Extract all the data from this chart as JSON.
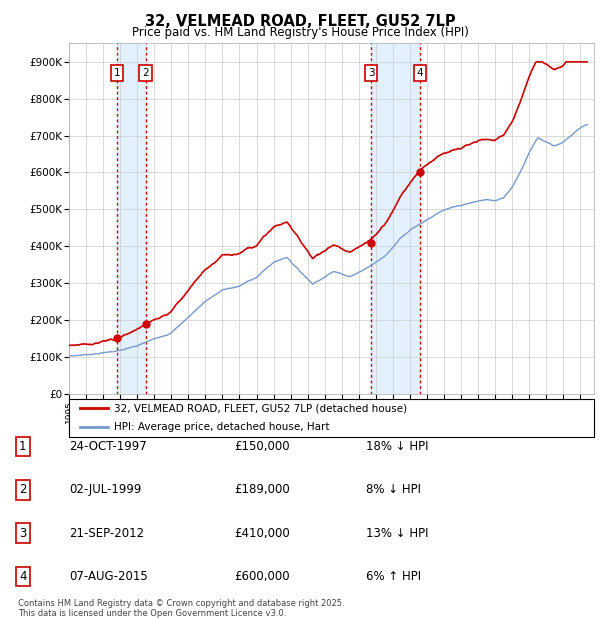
{
  "title": "32, VELMEAD ROAD, FLEET, GU52 7LP",
  "subtitle": "Price paid vs. HM Land Registry's House Price Index (HPI)",
  "ylim": [
    0,
    950000
  ],
  "yticks": [
    0,
    100000,
    200000,
    300000,
    400000,
    500000,
    600000,
    700000,
    800000,
    900000
  ],
  "ytick_labels": [
    "£0",
    "£100K",
    "£200K",
    "£300K",
    "£400K",
    "£500K",
    "£600K",
    "£700K",
    "£800K",
    "£900K"
  ],
  "xlim_start": 1995.0,
  "xlim_end": 2025.8,
  "hpi_color": "#7799cc",
  "price_color": "#cc0000",
  "transactions": [
    {
      "num": 1,
      "date": "24-OCT-1997",
      "year": 1997.81,
      "price": 150000,
      "pct": "18%",
      "dir": "↓"
    },
    {
      "num": 2,
      "date": "02-JUL-1999",
      "year": 1999.5,
      "price": 189000,
      "pct": "8%",
      "dir": "↓"
    },
    {
      "num": 3,
      "date": "21-SEP-2012",
      "year": 2012.72,
      "price": 410000,
      "pct": "13%",
      "dir": "↓"
    },
    {
      "num": 4,
      "date": "07-AUG-2015",
      "year": 2015.6,
      "price": 600000,
      "pct": "6%",
      "dir": "↑"
    }
  ],
  "legend_line1": "32, VELMEAD ROAD, FLEET, GU52 7LP (detached house)",
  "legend_line2": "HPI: Average price, detached house, Hart",
  "footer": "Contains HM Land Registry data © Crown copyright and database right 2025.\nThis data is licensed under the Open Government Licence v3.0.",
  "table_rows": [
    [
      "1",
      "24-OCT-1997",
      "£150,000",
      "18% ↓ HPI"
    ],
    [
      "2",
      "02-JUL-1999",
      "£189,000",
      "8% ↓ HPI"
    ],
    [
      "3",
      "21-SEP-2012",
      "£410,000",
      "13% ↓ HPI"
    ],
    [
      "4",
      "07-AUG-2015",
      "£600,000",
      "6% ↑ HPI"
    ]
  ]
}
